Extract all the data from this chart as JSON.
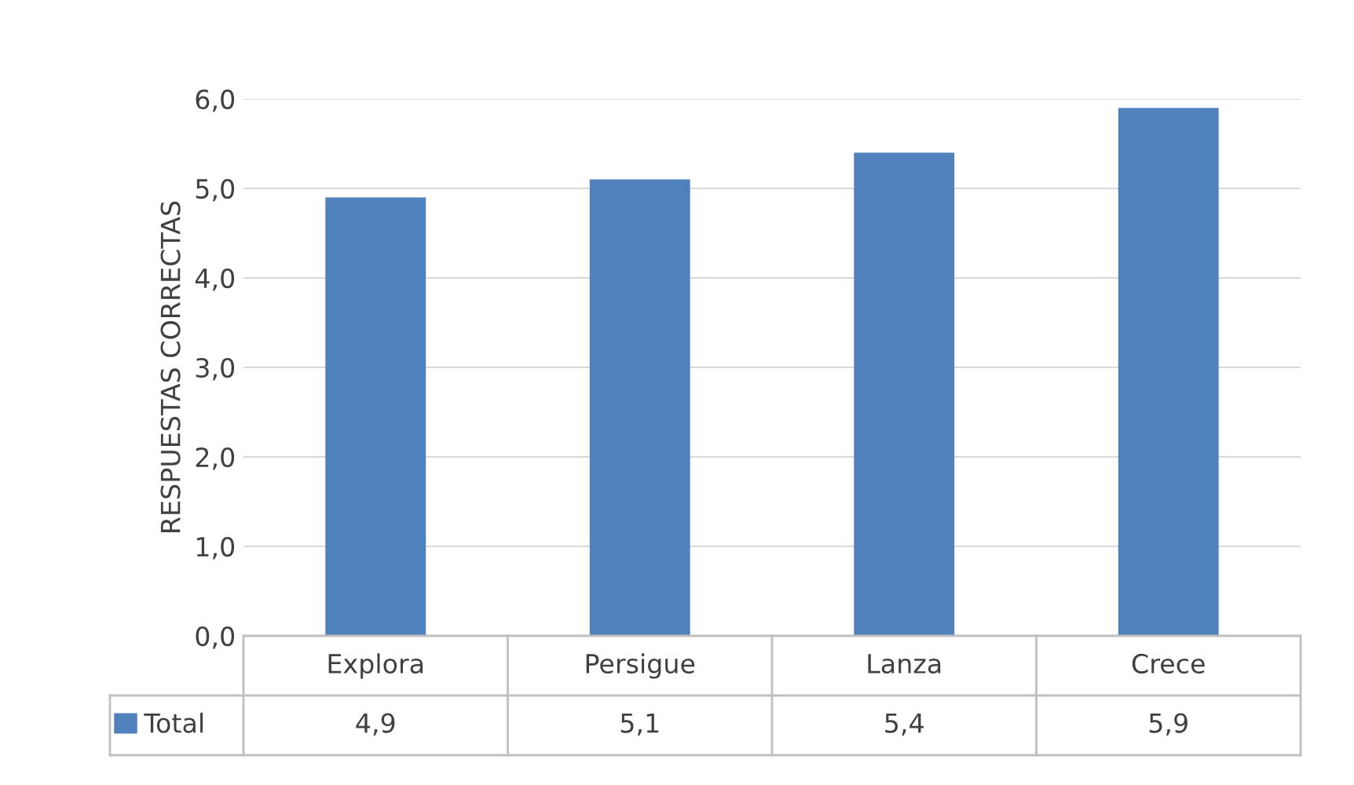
{
  "chart_data": {
    "type": "bar",
    "ylabel": "RESPUESTAS CORRECTAS",
    "categories": [
      "Explora",
      "Persigue",
      "Lanza",
      "Crece"
    ],
    "series": [
      {
        "name": "Total",
        "color": "#4f81bd",
        "values": [
          4.9,
          5.1,
          5.4,
          5.9
        ],
        "value_labels": [
          "4,9",
          "5,1",
          "5,4",
          "5,9"
        ]
      }
    ],
    "ylim": [
      0,
      6
    ],
    "yticks": [
      {
        "value": 0,
        "label": "0,0"
      },
      {
        "value": 1,
        "label": "1,0"
      },
      {
        "value": 2,
        "label": "2,0"
      },
      {
        "value": 3,
        "label": "3,0"
      },
      {
        "value": 4,
        "label": "4,0"
      },
      {
        "value": 5,
        "label": "5,0"
      },
      {
        "value": 6,
        "label": "6,0"
      }
    ],
    "grid": "y",
    "legend": "bottom"
  }
}
